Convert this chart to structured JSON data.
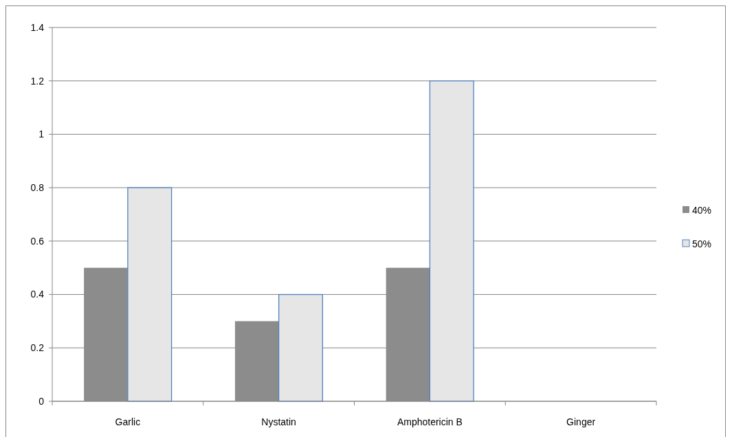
{
  "chart_data": {
    "type": "bar",
    "categories": [
      "Garlic",
      "Nystatin",
      "Amphotericin B",
      "Ginger"
    ],
    "series": [
      {
        "name": "40%",
        "color": "#8c8c8c",
        "values": [
          0.5,
          0.3,
          0.5,
          0
        ]
      },
      {
        "name": "50%",
        "color": "#e6e6e6",
        "values": [
          0.8,
          0.4,
          1.2,
          0
        ]
      }
    ],
    "ylim": [
      0,
      1.4
    ],
    "yticks": [
      0,
      0.2,
      0.4,
      0.6,
      0.8,
      1,
      1.2,
      1.4
    ],
    "grid": "y",
    "legend": "right"
  }
}
